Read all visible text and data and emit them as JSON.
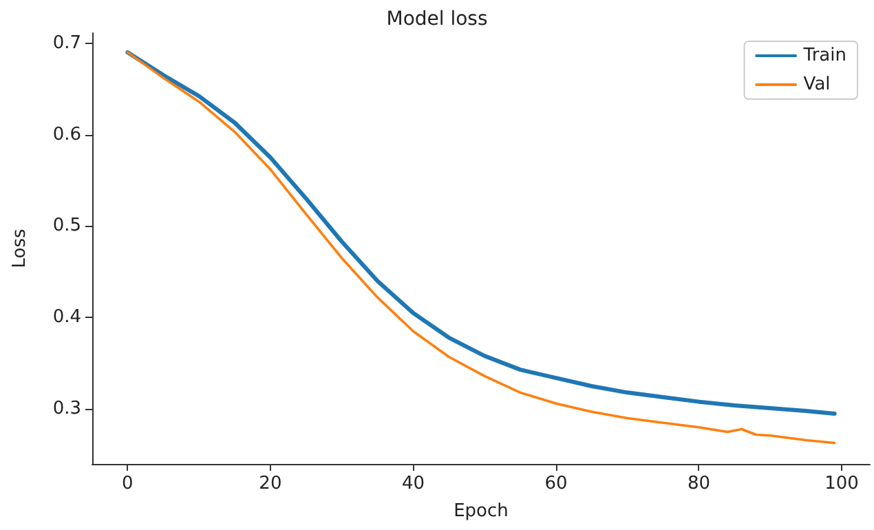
{
  "chart_data": {
    "type": "line",
    "title": "Model loss",
    "xlabel": "Epoch",
    "ylabel": "Loss",
    "xlim": [
      -4.95,
      103.95
    ],
    "xticks": [
      0,
      20,
      40,
      60,
      80,
      100
    ],
    "ylim": [
      0.24,
      0.711
    ],
    "yticks": [
      0.3,
      0.4,
      0.5,
      0.6,
      0.7
    ],
    "grid": false,
    "legend": "top right",
    "marker": "none",
    "line_style": "solid",
    "series": [
      {
        "name": "Train",
        "color": "#1f77b4",
        "x": [
          0,
          5,
          10,
          15,
          20,
          25,
          30,
          35,
          40,
          45,
          50,
          55,
          60,
          65,
          70,
          75,
          80,
          85,
          90,
          95,
          99
        ],
        "values": [
          0.69,
          0.665,
          0.642,
          0.613,
          0.575,
          0.53,
          0.483,
          0.44,
          0.405,
          0.378,
          0.358,
          0.343,
          0.334,
          0.325,
          0.318,
          0.313,
          0.308,
          0.304,
          0.301,
          0.298,
          0.295
        ]
      },
      {
        "name": "Val",
        "color": "#ff7f0e",
        "x": [
          0,
          5,
          10,
          15,
          20,
          25,
          30,
          35,
          40,
          45,
          50,
          55,
          60,
          65,
          70,
          75,
          80,
          84,
          86,
          88,
          90,
          95,
          99
        ],
        "values": [
          0.69,
          0.662,
          0.636,
          0.603,
          0.562,
          0.513,
          0.465,
          0.422,
          0.385,
          0.357,
          0.336,
          0.318,
          0.306,
          0.297,
          0.29,
          0.285,
          0.28,
          0.275,
          0.278,
          0.272,
          0.271,
          0.266,
          0.263
        ]
      }
    ]
  }
}
